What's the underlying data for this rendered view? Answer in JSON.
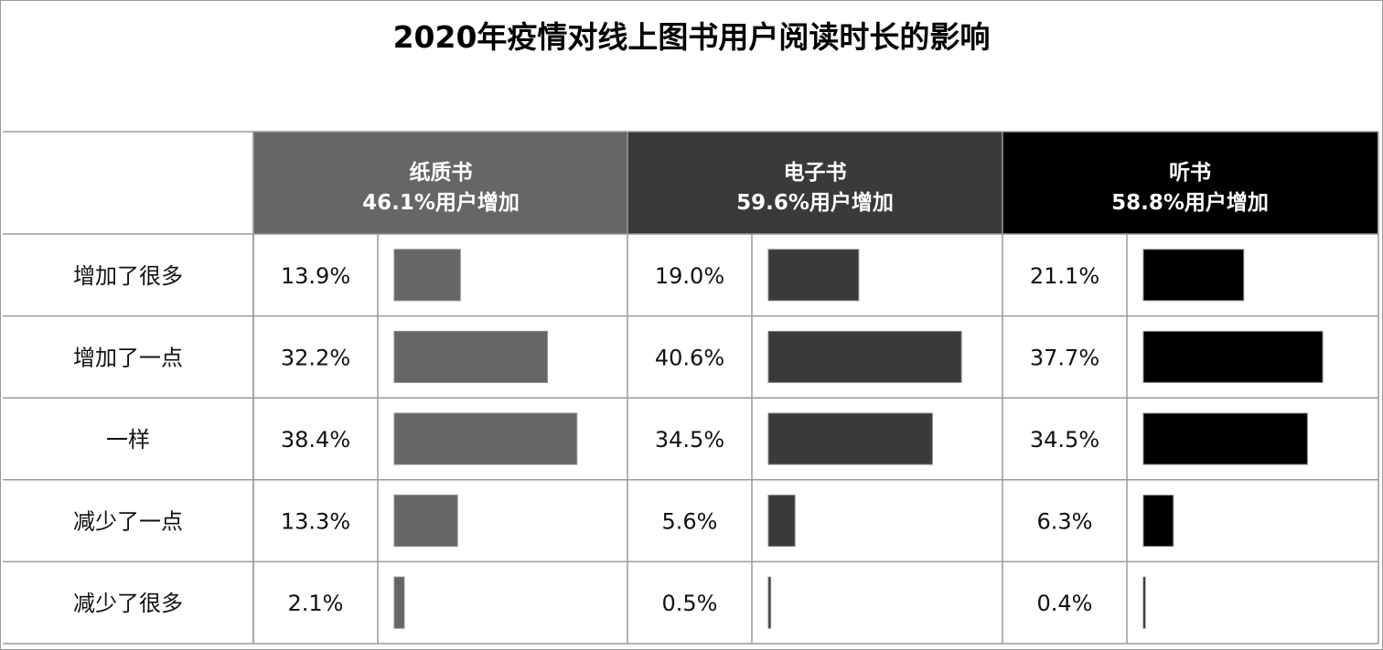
{
  "title": "2020年疫情对线上图书用户阅读时长的影响",
  "chart_data": {
    "type": "table",
    "title": "2020年疫情对线上图书用户阅读时长的影响",
    "categories": [
      "增加了很多",
      "增加了一点",
      "一样",
      "减少了一点",
      "减少了很多"
    ],
    "series": [
      {
        "name": "纸质书",
        "subtitle": "46.1%用户增加",
        "color": "#666666",
        "values": [
          13.9,
          32.2,
          38.4,
          13.3,
          2.1
        ],
        "labels": [
          "13.9%",
          "32.2%",
          "38.4%",
          "13.3%",
          "2.1%"
        ]
      },
      {
        "name": "电子书",
        "subtitle": "59.6%用户增加",
        "color": "#3a3a3a",
        "values": [
          19.0,
          40.6,
          34.5,
          5.6,
          0.5
        ],
        "labels": [
          "19.0%",
          "40.6%",
          "34.5%",
          "5.6%",
          "0.5%"
        ]
      },
      {
        "name": "听书",
        "subtitle": "58.8%用户增加",
        "color": "#000000",
        "values": [
          21.1,
          37.7,
          34.5,
          6.3,
          0.4
        ],
        "labels": [
          "21.1%",
          "37.7%",
          "34.5%",
          "6.3%",
          "0.4%"
        ]
      }
    ],
    "unit": "%"
  }
}
